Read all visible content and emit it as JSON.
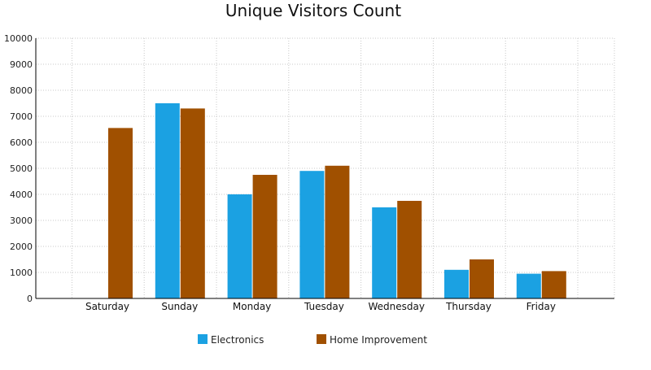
{
  "chart_data": {
    "type": "bar",
    "title": "Unique Visitors Count",
    "xlabel": "",
    "ylabel": "",
    "categories": [
      "Saturday",
      "Sunday",
      "Monday",
      "Tuesday",
      "Wednesday",
      "Thursday",
      "Friday"
    ],
    "series": [
      {
        "name": "Electronics",
        "color": "#1ba1e2",
        "values": [
          0,
          7500,
          4000,
          4900,
          3500,
          1100,
          950
        ]
      },
      {
        "name": "Home Improvement",
        "color": "#a05000",
        "values": [
          6550,
          7300,
          4750,
          5100,
          3750,
          1500,
          1050
        ]
      }
    ],
    "ylim": [
      0,
      10000
    ],
    "yticks": [
      0,
      1000,
      2000,
      3000,
      4000,
      5000,
      6000,
      7000,
      8000,
      9000,
      10000
    ],
    "grid": true,
    "legend_position": "bottom"
  }
}
